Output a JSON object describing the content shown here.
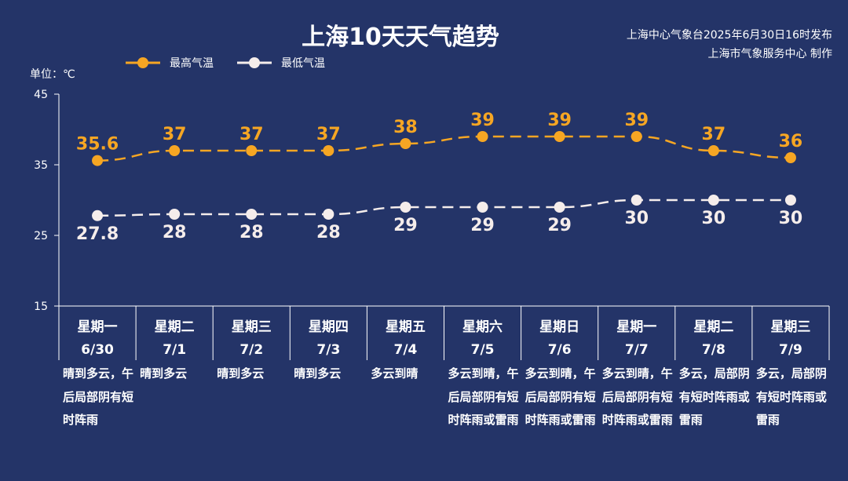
{
  "title": "上海10天天气趋势",
  "issuer": {
    "line1": "上海中心气象台2025年6月30日16时发布",
    "line2": "上海市气象服务中心 制作"
  },
  "unit_label": "单位：℃",
  "colors": {
    "background": "#243468",
    "high": "#F6A623",
    "low": "#F5EDEB",
    "axis": "#FFFFFF"
  },
  "chart_data": {
    "type": "line",
    "ylim": [
      15,
      45
    ],
    "yticks": [
      15,
      25,
      35,
      45
    ],
    "ylabel": "单位：℃",
    "categories": [
      {
        "weekday": "星期一",
        "date": "6/30"
      },
      {
        "weekday": "星期二",
        "date": "7/1"
      },
      {
        "weekday": "星期三",
        "date": "7/2"
      },
      {
        "weekday": "星期四",
        "date": "7/3"
      },
      {
        "weekday": "星期五",
        "date": "7/4"
      },
      {
        "weekday": "星期六",
        "date": "7/5"
      },
      {
        "weekday": "星期日",
        "date": "7/6"
      },
      {
        "weekday": "星期一",
        "date": "7/7"
      },
      {
        "weekday": "星期二",
        "date": "7/8"
      },
      {
        "weekday": "星期三",
        "date": "7/9"
      }
    ],
    "series": [
      {
        "name": "最高气温",
        "values": [
          35.6,
          37,
          37,
          37,
          38,
          39,
          39,
          39,
          37,
          36
        ]
      },
      {
        "name": "最低气温",
        "values": [
          27.8,
          28,
          28,
          28,
          29,
          29,
          29,
          30,
          30,
          30
        ]
      }
    ],
    "legend": "top-left"
  },
  "weather": [
    "晴到多云，午后局部阴有短时阵雨",
    "晴到多云",
    "晴到多云",
    "晴到多云",
    "多云到晴",
    "多云到晴，午后局部阴有短时阵雨或雷雨",
    "多云到晴，午后局部阴有短时阵雨或雷雨",
    "多云到晴，午后局部阴有短时阵雨或雷雨",
    "多云，局部阴有短时阵雨或雷雨",
    "多云，局部阴有短时阵雨或雷雨"
  ]
}
